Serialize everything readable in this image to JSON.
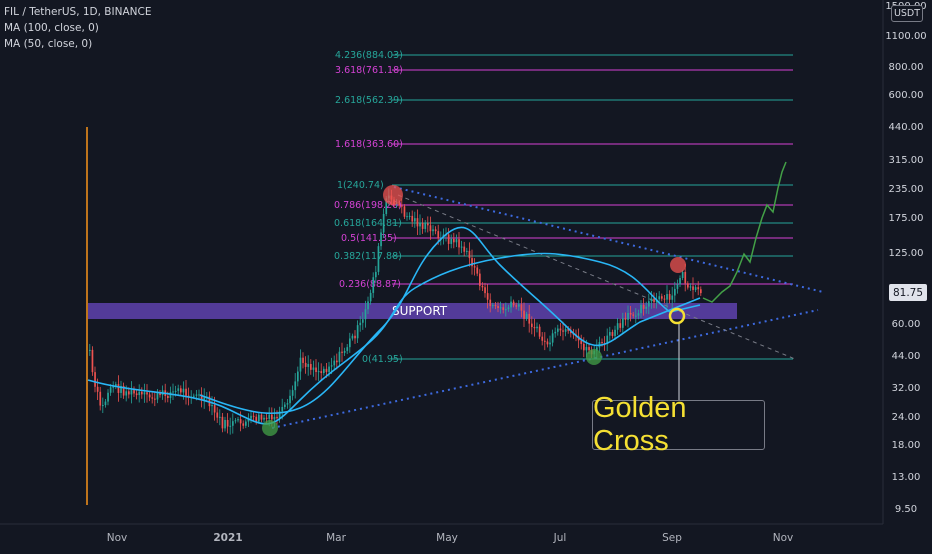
{
  "header": {
    "symbol_line": "FIL / TetherUS, 1D, BINANCE",
    "ma100_line": "MA (100, close, 0)",
    "ma50_line": "MA (50, close, 0)"
  },
  "price_axis": {
    "currency": "USDT",
    "current_price": "81.75",
    "ticks": [
      "1500.00",
      "1100.00",
      "800.00",
      "600.00",
      "440.00",
      "315.00",
      "235.00",
      "175.00",
      "125.00",
      "60.00",
      "44.00",
      "32.00",
      "24.00",
      "18.00",
      "13.00",
      "9.50"
    ]
  },
  "time_axis": {
    "labels": [
      "Nov",
      "2021",
      "Mar",
      "May",
      "Jul",
      "Sep",
      "Nov"
    ]
  },
  "fib_levels": [
    {
      "label": "4.236(884.03)",
      "color": "#26a69a"
    },
    {
      "label": "3.618(761.18)",
      "color": "#d442d4"
    },
    {
      "label": "2.618(562.39)",
      "color": "#26a69a"
    },
    {
      "label": "1.618(363.60)",
      "color": "#d442d4"
    },
    {
      "label": "1(240.74)",
      "color": "#26a69a"
    },
    {
      "label": "0.786(198.20)",
      "color": "#d442d4"
    },
    {
      "label": "0.618(164.81)",
      "color": "#26a69a"
    },
    {
      "label": "0.5(141.35)",
      "color": "#d442d4"
    },
    {
      "label": "0.382(117.88)",
      "color": "#26a69a"
    },
    {
      "label": "0.236(88.87)",
      "color": "#d442d4"
    },
    {
      "label": "0(41.95)",
      "color": "#26a69a"
    }
  ],
  "annotations": {
    "support_label": "SUPPORT",
    "golden_cross_label": "Golden Cross"
  },
  "colors": {
    "background": "#131722",
    "ma_line": "#29b6f6",
    "support_zone": "#5b3fa6",
    "projection": "#43a047",
    "trendline": "#3d6ae0"
  },
  "chart_data": {
    "type": "candlestick",
    "title": "FIL / TetherUS, 1D, BINANCE",
    "y_scale": "log",
    "series": [
      {
        "name": "MA (100, close, 0)",
        "color": "#29b6f6"
      },
      {
        "name": "MA (50, close, 0)",
        "color": "#29b6f6"
      }
    ],
    "approx_price_path": [
      {
        "x": "Nov",
        "y": 30
      },
      {
        "x": "2021",
        "y": 21
      },
      {
        "x": "Mar",
        "y": 60
      },
      {
        "x": "Apr",
        "y": 240
      },
      {
        "x": "May",
        "y": 100
      },
      {
        "x": "Jul",
        "y": 42
      },
      {
        "x": "Sep",
        "y": 82
      }
    ]
  }
}
